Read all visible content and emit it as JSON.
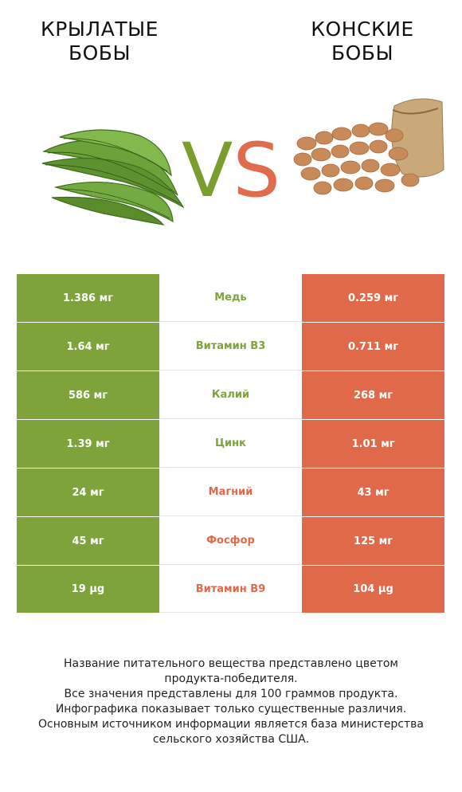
{
  "header": {
    "left_title": "КРЫЛАТЫЕ\nБОБЫ",
    "right_title": "КОНСКИЕ\nБОБЫ",
    "vs_v": "V",
    "vs_s": "S"
  },
  "colors": {
    "green": "#7ea33a",
    "red": "#e0694a"
  },
  "rows": [
    {
      "left": "1.386 мг",
      "name": "Медь",
      "right": "0.259 мг",
      "winner": "left"
    },
    {
      "left": "1.64 мг",
      "name": "Витамин B3",
      "right": "0.711 мг",
      "winner": "left"
    },
    {
      "left": "586 мг",
      "name": "Калий",
      "right": "268 мг",
      "winner": "left"
    },
    {
      "left": "1.39 мг",
      "name": "Цинк",
      "right": "1.01 мг",
      "winner": "left"
    },
    {
      "left": "24 мг",
      "name": "Магний",
      "right": "43 мг",
      "winner": "right"
    },
    {
      "left": "45 мг",
      "name": "Фосфор",
      "right": "125 мг",
      "winner": "right"
    },
    {
      "left": "19 µg",
      "name": "Витамин B9",
      "right": "104 µg",
      "winner": "right"
    }
  ],
  "footer": {
    "line1": "Название питательного вещества представлено цветом\nпродукта-победителя.",
    "line2": "Все значения представлены для 100 граммов продукта.",
    "line3": "Инфографика показывает только существенные различия.",
    "line4": "Основным источником информации является база министерства\nсельского хозяйства США."
  },
  "images": {
    "left": "winged-beans-image",
    "right": "fava-beans-sack-image"
  }
}
